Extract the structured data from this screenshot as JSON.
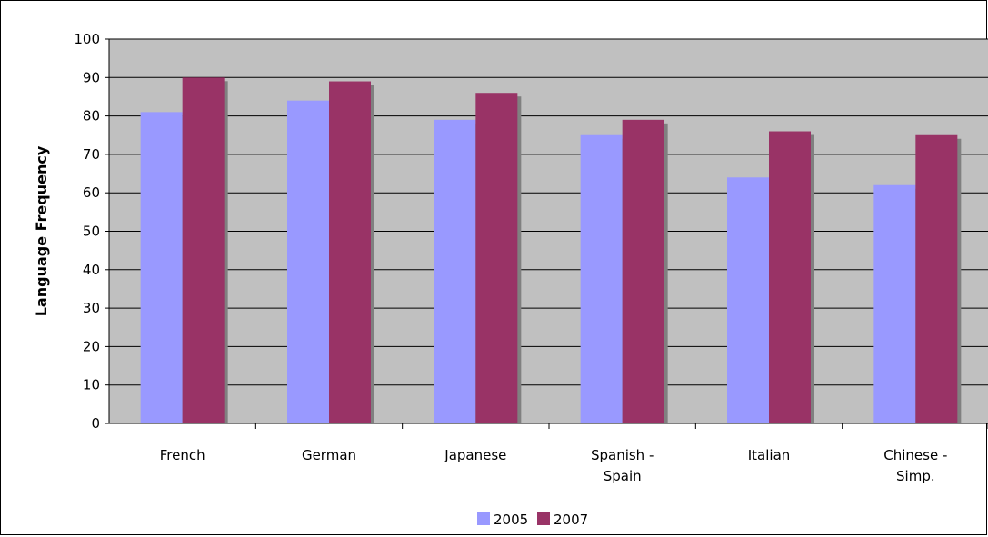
{
  "chart_data": {
    "type": "bar",
    "title": "",
    "xlabel": "",
    "ylabel": "Language Frequency",
    "ylim": [
      0,
      100
    ],
    "yticks": [
      0,
      10,
      20,
      30,
      40,
      50,
      60,
      70,
      80,
      90,
      100
    ],
    "grid": true,
    "legend_position": "bottom",
    "categories": [
      [
        "French"
      ],
      [
        "German"
      ],
      [
        "Japanese"
      ],
      [
        "Spanish -",
        "Spain"
      ],
      [
        "Italian"
      ],
      [
        "Chinese -",
        "Simp."
      ]
    ],
    "series": [
      {
        "name": "2005",
        "color": "#9999ff",
        "values": [
          81,
          84,
          79,
          75,
          64,
          62
        ]
      },
      {
        "name": "2007",
        "color": "#993366",
        "values": [
          90,
          89,
          86,
          79,
          76,
          75
        ]
      }
    ],
    "plot_background": "#c0c0c0",
    "shadow_color": "#808080"
  }
}
